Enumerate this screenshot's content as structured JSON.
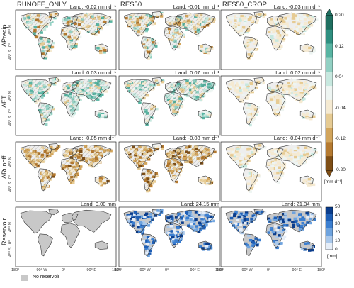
{
  "columns": [
    "RUNOFF_ONLY",
    "RES50",
    "RES50_CROP"
  ],
  "rows": [
    {
      "label": "ΔPrecip",
      "land": [
        "Land: -0.02 mm d⁻¹",
        "Land: -0.01 mm d⁻¹",
        "Land: -0.03 mm d⁻¹"
      ],
      "pattern": [
        "mix",
        "mix",
        "light"
      ]
    },
    {
      "label": "ΔET",
      "land": [
        "Land: 0.03 mm d⁻¹",
        "Land: 0.07 mm d⁻¹",
        "Land: 0.02 mm d⁻¹"
      ],
      "pattern": [
        "wet",
        "wet",
        "light"
      ]
    },
    {
      "label": "ΔRunoff",
      "land": [
        "Land: -0.05 mm d⁻¹",
        "Land: -0.08 mm d⁻¹",
        "Land: -0.04 mm d⁻¹"
      ],
      "pattern": [
        "dry",
        "dry",
        "light"
      ]
    },
    {
      "label": "Reservoir",
      "land": [
        "Land: 0.00 mm",
        "Land: 24.15 mm",
        "Land: 21.34 mm"
      ],
      "pattern": [
        "none",
        "res",
        "res2"
      ]
    }
  ],
  "lat_labels": [
    "45° N",
    "0°",
    "45° S"
  ],
  "lon_labels": [
    "180°",
    "90° W",
    "0°",
    "90° E",
    "180°"
  ],
  "colorbar_diff": {
    "ticks": [
      "0.20",
      "0.12",
      "0.04",
      "-0.04",
      "-0.12",
      "-0.20"
    ],
    "unit": "[mm  d⁻¹]",
    "colors": [
      "#1f6f60",
      "#2f8f80",
      "#58b4a2",
      "#92d0c3",
      "#c7e8df",
      "#eef5f2",
      "#f5ead2",
      "#e6cb93",
      "#d2a55c",
      "#b57a30",
      "#7f4f16"
    ]
  },
  "colorbar_res": {
    "ticks": [
      "50",
      "40",
      "30",
      "20",
      "10",
      "0"
    ],
    "unit": "[mm]",
    "colors": [
      "#0b3d8c",
      "#1f5fb5",
      "#3c7fd0",
      "#6ea3de",
      "#a9c8eb",
      "#e6eef8"
    ]
  },
  "legend": {
    "label": "No reservoir",
    "color": "#c8c8c8"
  },
  "chart_data": {
    "type": "heatmap",
    "panels": [
      {
        "variable": "ΔPrecip",
        "experiment": "RUNOFF_ONLY",
        "land_mean": -0.02,
        "unit": "mm d⁻¹"
      },
      {
        "variable": "ΔPrecip",
        "experiment": "RES50",
        "land_mean": -0.01,
        "unit": "mm d⁻¹"
      },
      {
        "variable": "ΔPrecip",
        "experiment": "RES50_CROP",
        "land_mean": -0.03,
        "unit": "mm d⁻¹"
      },
      {
        "variable": "ΔET",
        "experiment": "RUNOFF_ONLY",
        "land_mean": 0.03,
        "unit": "mm d⁻¹"
      },
      {
        "variable": "ΔET",
        "experiment": "RES50",
        "land_mean": 0.07,
        "unit": "mm d⁻¹"
      },
      {
        "variable": "ΔET",
        "experiment": "RES50_CROP",
        "land_mean": 0.02,
        "unit": "mm d⁻¹"
      },
      {
        "variable": "ΔRunoff",
        "experiment": "RUNOFF_ONLY",
        "land_mean": -0.05,
        "unit": "mm d⁻¹"
      },
      {
        "variable": "ΔRunoff",
        "experiment": "RES50",
        "land_mean": -0.08,
        "unit": "mm d⁻¹"
      },
      {
        "variable": "ΔRunoff",
        "experiment": "RES50_CROP",
        "land_mean": -0.04,
        "unit": "mm d⁻¹"
      },
      {
        "variable": "Reservoir",
        "experiment": "RUNOFF_ONLY",
        "land_mean": 0.0,
        "unit": "mm"
      },
      {
        "variable": "Reservoir",
        "experiment": "RES50",
        "land_mean": 24.15,
        "unit": "mm"
      },
      {
        "variable": "Reservoir",
        "experiment": "RES50_CROP",
        "land_mean": 21.34,
        "unit": "mm"
      }
    ],
    "colorbar_diff_range": [
      -0.2,
      0.2
    ],
    "colorbar_res_range": [
      0,
      50
    ]
  }
}
